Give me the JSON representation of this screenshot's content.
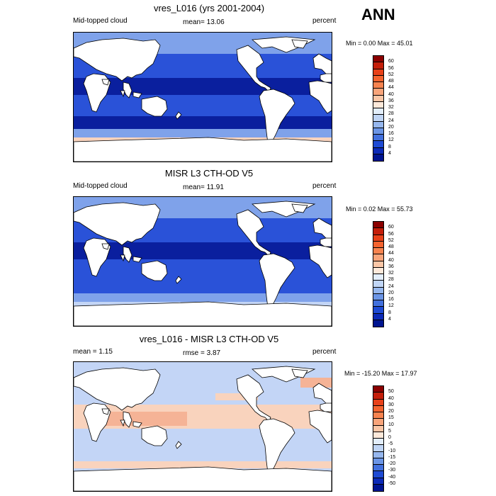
{
  "season": "ANN",
  "panels": [
    {
      "title": "vres_L016 (yrs 2001-2004)",
      "left": "Mid-topped cloud",
      "center": "mean=  13.06",
      "right": "percent",
      "minmax": "Min =   0.00 Max =  45.01",
      "ticks": [
        "60",
        "56",
        "52",
        "48",
        "44",
        "40",
        "36",
        "32",
        "28",
        "24",
        "20",
        "16",
        "12",
        "8",
        "4"
      ],
      "colors": [
        "#8b0000",
        "#c41e0a",
        "#e84119",
        "#f4632f",
        "#f7834f",
        "#f8a47a",
        "#fac6a6",
        "#fde9da",
        "#e3eefb",
        "#c0d5f5",
        "#96b7ee",
        "#6b95e6",
        "#4270dd",
        "#1e4ad4",
        "#0c2ab8",
        "#001490"
      ]
    },
    {
      "title": "MISR L3 CTH-OD V5",
      "left": "Mid-topped cloud",
      "center": "mean=  11.91",
      "right": "percent",
      "minmax": "Min =   0.02 Max =  55.73",
      "ticks": [
        "60",
        "56",
        "52",
        "48",
        "44",
        "40",
        "36",
        "32",
        "28",
        "24",
        "20",
        "16",
        "12",
        "8",
        "4"
      ],
      "colors": [
        "#8b0000",
        "#c41e0a",
        "#e84119",
        "#f4632f",
        "#f7834f",
        "#f8a47a",
        "#fac6a6",
        "#fde9da",
        "#e3eefb",
        "#c0d5f5",
        "#96b7ee",
        "#6b95e6",
        "#4270dd",
        "#1e4ad4",
        "#0c2ab8",
        "#001490"
      ]
    },
    {
      "title": "vres_L016 - MISR L3 CTH-OD V5",
      "left": "mean =   1.15",
      "center": "rmse =   3.87",
      "right": "percent",
      "minmax": "Min = -15.20 Max =  17.97",
      "ticks": [
        "50",
        "40",
        "30",
        "20",
        "15",
        "10",
        "5",
        "0",
        "-5",
        "-10",
        "-15",
        "-20",
        "-30",
        "-40",
        "-50"
      ],
      "colors": [
        "#8b0000",
        "#c41e0a",
        "#e84119",
        "#f4632f",
        "#f7834f",
        "#f8a47a",
        "#fac6a6",
        "#fde9da",
        "#e3eefb",
        "#c0d5f5",
        "#96b7ee",
        "#6b95e6",
        "#4270dd",
        "#1e4ad4",
        "#0c2ab8",
        "#001490"
      ]
    }
  ],
  "map_colors": {
    "deep": "#0a1f9e",
    "mid": "#2a52d8",
    "light": "#7fa2ea",
    "pale": "#c3d5f6",
    "peach": "#f9d3bd",
    "salmon": "#f5b396",
    "land": "#ffffff"
  }
}
